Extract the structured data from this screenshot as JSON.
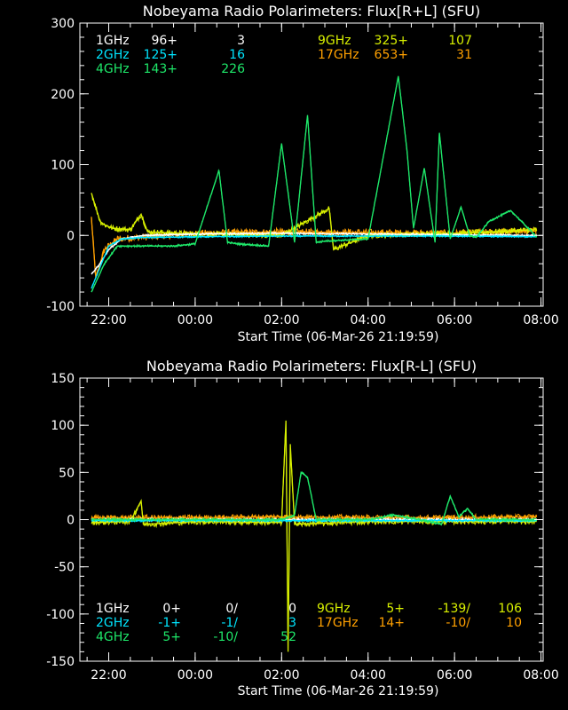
{
  "colors": {
    "background": "#000000",
    "axis": "#ffffff",
    "1GHz": "#ffffff",
    "2GHz": "#00e5ff",
    "4GHz": "#1ee86a",
    "9GHz": "#d8f000",
    "17GHz": "#ffa000"
  },
  "chart_data": [
    {
      "type": "line",
      "title": "Nobeyama Radio Polarimeters: Flux[R+L] (SFU)",
      "xlabel": "Start Time (06-Mar-26 21:19:59)",
      "ylabel": "",
      "x_range_hours": [
        21.333,
        32.05
      ],
      "ylim": [
        -100,
        300
      ],
      "yticks": [
        -100,
        0,
        100,
        200,
        300
      ],
      "ytick_labels": [
        "-100",
        "0",
        "100",
        "200",
        "300"
      ],
      "xticks": [
        22,
        24,
        26,
        28,
        30,
        32
      ],
      "xtick_labels": [
        "22:00",
        "00:00",
        "02:00",
        "04:00",
        "06:00",
        "08:00"
      ],
      "legend": {
        "placement": "top",
        "rows": [
          {
            "band": "1GHz",
            "a": "96+",
            "b": "3",
            "c": ""
          },
          {
            "band": "2GHz",
            "a": "125+",
            "b": "16",
            "c": ""
          },
          {
            "band": "4GHz",
            "a": "143+",
            "b": "226",
            "c": ""
          },
          {
            "band": "9GHz",
            "a": "325+",
            "b": "107",
            "c": ""
          },
          {
            "band": "17GHz",
            "a": "653+",
            "b": "31",
            "c": ""
          }
        ]
      },
      "series": [
        {
          "name": "1GHz",
          "x": [
            21.6,
            21.8,
            22.0,
            22.3,
            22.8,
            24,
            26,
            28,
            30,
            31.9
          ],
          "y": [
            -55,
            -40,
            -20,
            -5,
            0,
            2,
            3,
            2,
            1,
            0
          ]
        },
        {
          "name": "2GHz",
          "x": [
            21.6,
            21.8,
            22.0,
            22.3,
            22.8,
            24,
            26,
            28,
            30,
            31.9
          ],
          "y": [
            -75,
            -45,
            -15,
            -5,
            -3,
            -2,
            -1,
            -1,
            -1,
            -2
          ]
        },
        {
          "name": "4GHz",
          "x": [
            21.6,
            21.9,
            22.2,
            22.6,
            23.5,
            24.0,
            24.55,
            24.75,
            25.0,
            25.7,
            26.0,
            26.3,
            26.6,
            26.8,
            27.0,
            28.0,
            28.7,
            28.9,
            29.05,
            29.3,
            29.55,
            29.65,
            29.9,
            30.15,
            30.35,
            30.5,
            30.8,
            31.3,
            31.9
          ],
          "y": [
            -80,
            -40,
            -15,
            -15,
            -15,
            -12,
            92,
            -10,
            -12,
            -15,
            130,
            -10,
            170,
            -10,
            -8,
            -5,
            225,
            120,
            10,
            95,
            -10,
            145,
            -5,
            40,
            0,
            -3,
            20,
            35,
            -2
          ]
        },
        {
          "name": "9GHz",
          "x": [
            21.6,
            21.8,
            21.9,
            22.1,
            22.5,
            22.75,
            22.9,
            24,
            26,
            27.1,
            27.2,
            28,
            30,
            31.9
          ],
          "y": [
            60,
            20,
            15,
            10,
            8,
            30,
            5,
            2,
            0,
            38,
            -20,
            0,
            3,
            8
          ]
        },
        {
          "name": "17GHz",
          "x": [
            21.6,
            21.7,
            21.9,
            22.2,
            24,
            26,
            28,
            30,
            31.9
          ],
          "y": [
            25,
            -60,
            -20,
            -5,
            3,
            5,
            4,
            3,
            6
          ]
        }
      ]
    },
    {
      "type": "line",
      "title": "Nobeyama Radio Polarimeters: Flux[R-L] (SFU)",
      "xlabel": "Start Time (06-Mar-26 21:19:59)",
      "ylabel": "",
      "x_range_hours": [
        21.333,
        32.05
      ],
      "ylim": [
        -150,
        150
      ],
      "yticks": [
        -150,
        -100,
        -50,
        0,
        50,
        100,
        150
      ],
      "ytick_labels": [
        "-150",
        "-100",
        "-50",
        "0",
        "50",
        "100",
        "150"
      ],
      "xticks": [
        22,
        24,
        26,
        28,
        30,
        32
      ],
      "xtick_labels": [
        "22:00",
        "00:00",
        "02:00",
        "04:00",
        "06:00",
        "08:00"
      ],
      "legend": {
        "placement": "bottom",
        "rows": [
          {
            "band": "1GHz",
            "a": "0+",
            "b": "0/",
            "c": "0"
          },
          {
            "band": "2GHz",
            "a": "-1+",
            "b": "-1/",
            "c": "3"
          },
          {
            "band": "4GHz",
            "a": "5+",
            "b": "-10/",
            "c": "52"
          },
          {
            "band": "9GHz",
            "a": "5+",
            "b": "-139/",
            "c": "106"
          },
          {
            "band": "17GHz",
            "a": "14+",
            "b": "-10/",
            "c": "10"
          }
        ]
      },
      "series": [
        {
          "name": "1GHz",
          "x": [
            21.6,
            24,
            26,
            28,
            30,
            31.9
          ],
          "y": [
            0,
            0,
            0,
            0,
            0,
            0
          ]
        },
        {
          "name": "2GHz",
          "x": [
            21.6,
            24,
            26,
            28,
            30,
            31.9
          ],
          "y": [
            -1,
            -1,
            -1,
            -1,
            -1,
            -1
          ]
        },
        {
          "name": "4GHz",
          "x": [
            21.6,
            26.0,
            26.3,
            26.45,
            26.6,
            26.8,
            27.5,
            28.0,
            28.6,
            29.2,
            29.7,
            29.9,
            30.1,
            30.3,
            30.5,
            31.9
          ],
          "y": [
            0,
            0,
            5,
            50,
            45,
            0,
            0,
            0,
            5,
            0,
            -5,
            25,
            3,
            12,
            0,
            0
          ]
        },
        {
          "name": "9GHz",
          "x": [
            21.6,
            22.5,
            22.75,
            22.8,
            24,
            26.0,
            26.1,
            26.15,
            26.2,
            26.3,
            28,
            30,
            31.9
          ],
          "y": [
            -3,
            -2,
            20,
            -5,
            -2,
            -3,
            105,
            -140,
            80,
            -5,
            -2,
            -2,
            -2
          ]
        },
        {
          "name": "17GHz",
          "x": [
            21.6,
            24,
            26,
            28,
            30,
            31.9
          ],
          "y": [
            2,
            2,
            3,
            2,
            2,
            3
          ]
        }
      ]
    }
  ]
}
